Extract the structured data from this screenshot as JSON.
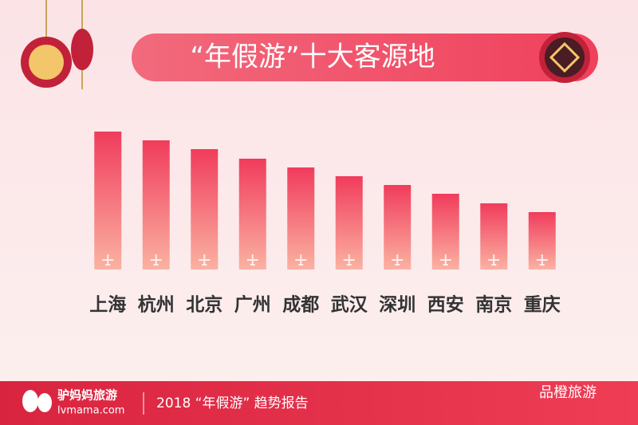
{
  "chart_data": {
    "type": "bar",
    "title": "“年假游”十大客源地",
    "categories": [
      "上海",
      "杭州",
      "北京",
      "广州",
      "成都",
      "武汉",
      "深圳",
      "西安",
      "南京",
      "重庆"
    ],
    "values": [
      173,
      162,
      151,
      139,
      128,
      117,
      106,
      95,
      83,
      72
    ],
    "ylim": [
      0,
      180
    ],
    "color_top": "#f03c5c",
    "color_bottom": "#fbb2a2"
  },
  "footer": {
    "brand": "驴妈妈旅游",
    "site": "lvmama.com",
    "report": "2018 “年假游” 趋势报告",
    "watermark": "品橙旅游"
  }
}
